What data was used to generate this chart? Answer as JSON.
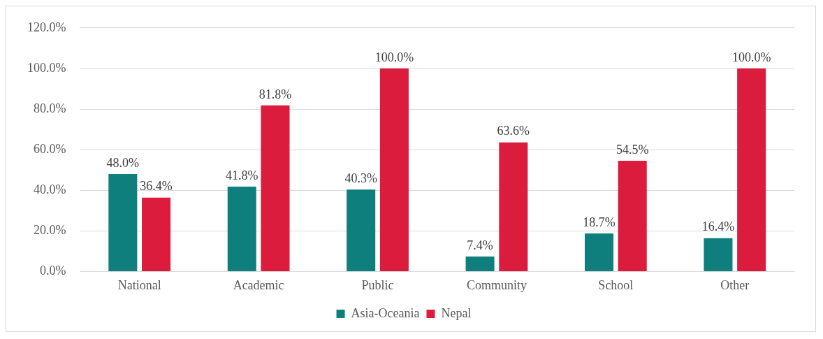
{
  "chart_data": {
    "type": "bar",
    "categories": [
      "National",
      "Academic",
      "Public",
      "Community",
      "School",
      "Other"
    ],
    "series": [
      {
        "name": "Asia-Oceania",
        "color": "#0e7f7c",
        "values": [
          48.0,
          41.8,
          40.3,
          7.4,
          18.7,
          16.4
        ],
        "value_labels": [
          "48.0%",
          "41.8%",
          "40.3%",
          "7.4%",
          "18.7%",
          "16.4%"
        ]
      },
      {
        "name": "Nepal",
        "color": "#dc1c3c",
        "values": [
          36.4,
          81.8,
          100.0,
          63.6,
          54.5,
          100.0
        ],
        "value_labels": [
          "36.4%",
          "81.8%",
          "100.0%",
          "63.6%",
          "54.5%",
          "100.0%"
        ]
      }
    ],
    "ylim": [
      0,
      120
    ],
    "yticks": [
      {
        "value": 0,
        "label": "0.0%"
      },
      {
        "value": 20,
        "label": "20.0%"
      },
      {
        "value": 40,
        "label": "40.0%"
      },
      {
        "value": 60,
        "label": "60.0%"
      },
      {
        "value": 80,
        "label": "80.0%"
      },
      {
        "value": 100,
        "label": "100.0%"
      },
      {
        "value": 120,
        "label": "120.0%"
      }
    ],
    "grid": "y",
    "legend": "bottom"
  }
}
